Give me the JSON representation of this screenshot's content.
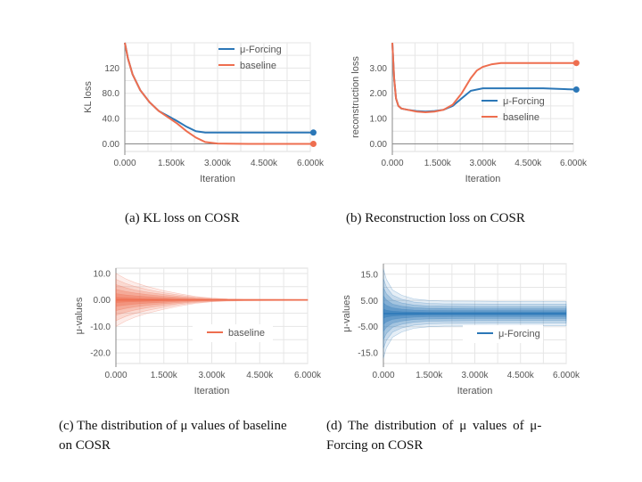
{
  "captions": {
    "a": "(a)  KL loss on COSR",
    "b": "(b)  Reconstruction loss on COSR",
    "c_line1": "(c)  The distribution of μ values of baseline",
    "c_line2": "on COSR",
    "d_line1": "(d)  The  distribution  of  μ  values  of  μ-",
    "d_line2": "Forcing on COSR"
  },
  "colors": {
    "mu_forcing": "#2b77b7",
    "baseline": "#ee6e4f",
    "grid": "#e6e6e6",
    "axis": "#888888"
  },
  "chart_data": [
    {
      "id": "a",
      "type": "line",
      "ylabel": "KL loss",
      "xlabel": "Iteration",
      "x_ticks": [
        "0.000",
        "1.500k",
        "3.000k",
        "4.500k",
        "6.000k"
      ],
      "y_ticks": [
        "0.00",
        "40.0",
        "80.0",
        "120"
      ],
      "xlim": [
        0,
        6000
      ],
      "ylim": [
        -12,
        160
      ],
      "grid": true,
      "legend": "top-right",
      "series": [
        {
          "name": "μ-Forcing",
          "color": "#2b77b7",
          "x": [
            0,
            100,
            250,
            500,
            800,
            1100,
            1400,
            1700,
            2000,
            2300,
            2600,
            3000,
            4000,
            5000,
            6100
          ],
          "y": [
            160,
            135,
            110,
            85,
            66,
            52,
            44,
            36,
            27,
            20,
            18,
            18,
            18,
            18,
            18
          ]
        },
        {
          "name": "baseline",
          "color": "#ee6e4f",
          "x": [
            0,
            100,
            250,
            500,
            800,
            1100,
            1400,
            1700,
            2000,
            2300,
            2600,
            3000,
            4000,
            5000,
            6100
          ],
          "y": [
            160,
            135,
            110,
            85,
            66,
            52,
            42,
            32,
            20,
            10,
            3,
            0.5,
            0,
            0,
            0
          ]
        }
      ]
    },
    {
      "id": "b",
      "type": "line",
      "ylabel": "reconstruction loss",
      "xlabel": "Iteration",
      "x_ticks": [
        "0.000",
        "1.500k",
        "3.000k",
        "4.500k",
        "6.000k"
      ],
      "y_ticks": [
        "0.00",
        "1.00",
        "2.00",
        "3.00"
      ],
      "xlim": [
        0,
        6000
      ],
      "ylim": [
        -0.3,
        4.0
      ],
      "grid": true,
      "legend": "bottom-right",
      "series": [
        {
          "name": "μ-Forcing",
          "color": "#2b77b7",
          "x": [
            0,
            60,
            120,
            200,
            300,
            500,
            800,
            1100,
            1400,
            1700,
            2000,
            2300,
            2600,
            3000,
            3500,
            4000,
            5000,
            6100
          ],
          "y": [
            4.0,
            2.6,
            1.8,
            1.5,
            1.4,
            1.35,
            1.3,
            1.28,
            1.3,
            1.35,
            1.5,
            1.8,
            2.1,
            2.2,
            2.2,
            2.2,
            2.2,
            2.15
          ]
        },
        {
          "name": "baseline",
          "color": "#ee6e4f",
          "x": [
            0,
            60,
            120,
            200,
            300,
            500,
            800,
            1100,
            1400,
            1700,
            2000,
            2300,
            2600,
            2800,
            3000,
            3300,
            3600,
            4000,
            5000,
            6100
          ],
          "y": [
            4.0,
            2.6,
            1.8,
            1.5,
            1.4,
            1.35,
            1.28,
            1.25,
            1.28,
            1.35,
            1.55,
            2.0,
            2.6,
            2.9,
            3.05,
            3.15,
            3.2,
            3.2,
            3.2,
            3.2
          ]
        }
      ]
    },
    {
      "id": "c",
      "type": "area",
      "ylabel": "μ-values",
      "xlabel": "Iteration",
      "x_ticks": [
        "0.000",
        "1.500k",
        "3.000k",
        "4.500k",
        "6.000k"
      ],
      "y_ticks": [
        "-20.0",
        "-10.0",
        "0.00",
        "10.0"
      ],
      "xlim": [
        0,
        6000
      ],
      "ylim": [
        -24,
        12
      ],
      "grid": true,
      "legend": "bottom-right",
      "series": [
        {
          "name": "baseline",
          "color": "#ee6e4f",
          "x": [
            0,
            300,
            600,
            1000,
            1500,
            2000,
            2500,
            3000,
            3500,
            4000,
            5000,
            6000
          ],
          "spread": [
            10,
            8,
            6.5,
            5,
            3.5,
            2.3,
            1.3,
            0.7,
            0.4,
            0.3,
            0.25,
            0.2
          ]
        }
      ]
    },
    {
      "id": "d",
      "type": "area",
      "ylabel": "μ-values",
      "xlabel": "Iteration",
      "x_ticks": [
        "0.000",
        "1.500k",
        "3.000k",
        "4.500k",
        "6.000k"
      ],
      "y_ticks": [
        "-15.0",
        "-5.00",
        "5.00",
        "15.0"
      ],
      "xlim": [
        0,
        6000
      ],
      "ylim": [
        -19,
        19
      ],
      "grid": true,
      "legend": "bottom-right",
      "series": [
        {
          "name": "μ-Forcing",
          "color": "#2b77b7",
          "x": [
            0,
            100,
            300,
            600,
            1000,
            1500,
            2000,
            3000,
            4000,
            5000,
            6000
          ],
          "spread": [
            17,
            13,
            9,
            7,
            5.6,
            5,
            4.8,
            4.7,
            4.6,
            4.6,
            4.6
          ]
        }
      ]
    }
  ]
}
